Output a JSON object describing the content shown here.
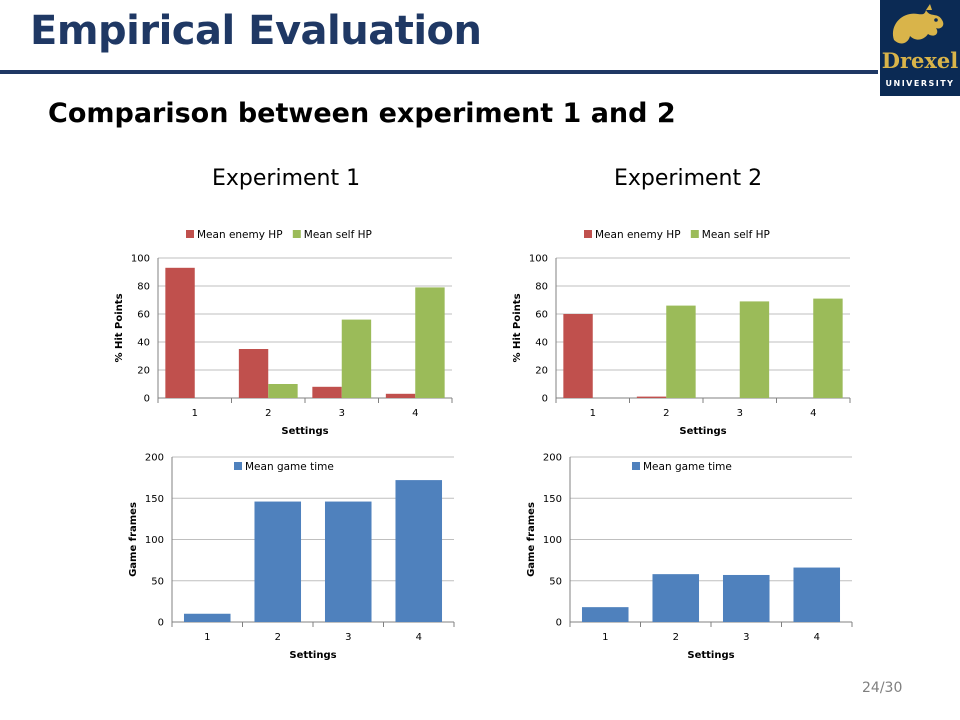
{
  "header": {
    "title": "Empirical Evaluation",
    "subtitle": "Comparison between experiment 1 and 2",
    "logo": {
      "text": "Drexel",
      "subtext": "UNIVERSITY",
      "icon": "dragon-icon"
    },
    "page": "24/30"
  },
  "columns": [
    {
      "label": "Experiment 1"
    },
    {
      "label": "Experiment 2"
    }
  ],
  "colors": {
    "enemy": "#c0504d",
    "self": "#9bbb59",
    "time": "#4f81bd",
    "title": "#1f3864"
  },
  "chart_data": [
    {
      "type": "bar",
      "group": "Experiment 1",
      "categories": [
        "1",
        "2",
        "3",
        "4"
      ],
      "series": [
        {
          "name": "Mean enemy HP",
          "values": [
            93,
            35,
            8,
            3
          ]
        },
        {
          "name": "Mean self HP",
          "values": [
            0,
            10,
            56,
            79
          ]
        }
      ],
      "xlabel": "Settings",
      "ylabel": "% Hit Points",
      "ylim": [
        0,
        100
      ],
      "yticks": [
        0,
        20,
        40,
        60,
        80,
        100
      ],
      "legend": "top",
      "grid": true
    },
    {
      "type": "bar",
      "group": "Experiment 2",
      "categories": [
        "1",
        "2",
        "3",
        "4"
      ],
      "series": [
        {
          "name": "Mean enemy HP",
          "values": [
            60,
            1,
            0,
            0
          ]
        },
        {
          "name": "Mean self HP",
          "values": [
            0,
            66,
            69,
            71
          ]
        }
      ],
      "xlabel": "Settings",
      "ylabel": "% Hit Points",
      "ylim": [
        0,
        100
      ],
      "yticks": [
        0,
        20,
        40,
        60,
        80,
        100
      ],
      "legend": "top",
      "grid": true
    },
    {
      "type": "bar",
      "group": "Experiment 1",
      "categories": [
        "1",
        "2",
        "3",
        "4"
      ],
      "series": [
        {
          "name": "Mean game time",
          "values": [
            10,
            146,
            146,
            172
          ]
        }
      ],
      "xlabel": "Settings",
      "ylabel": "Game frames",
      "ylim": [
        0,
        200
      ],
      "yticks": [
        0,
        50,
        100,
        150,
        200
      ],
      "legend": "top-left",
      "grid": true
    },
    {
      "type": "bar",
      "group": "Experiment 2",
      "categories": [
        "1",
        "2",
        "3",
        "4"
      ],
      "series": [
        {
          "name": "Mean game time",
          "values": [
            18,
            58,
            57,
            66
          ]
        }
      ],
      "xlabel": "Settings",
      "ylabel": "Game frames",
      "ylim": [
        0,
        200
      ],
      "yticks": [
        0,
        50,
        100,
        150,
        200
      ],
      "legend": "top-left",
      "grid": true
    }
  ]
}
